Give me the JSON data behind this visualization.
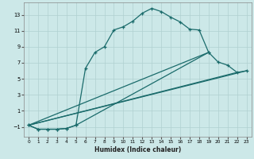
{
  "xlabel": "Humidex (Indice chaleur)",
  "background_color": "#cce8e8",
  "grid_color": "#b0d0d0",
  "line_color": "#1a6b6b",
  "xlim": [
    -0.5,
    23.5
  ],
  "ylim": [
    -2.2,
    14.5
  ],
  "xticks": [
    0,
    1,
    2,
    3,
    4,
    5,
    6,
    7,
    8,
    9,
    10,
    11,
    12,
    13,
    14,
    15,
    16,
    17,
    18,
    19,
    20,
    21,
    22,
    23
  ],
  "yticks": [
    -1,
    1,
    3,
    5,
    7,
    9,
    11,
    13
  ],
  "curve1_x": [
    0,
    1,
    2,
    3,
    4,
    5,
    6,
    7,
    8,
    9,
    10,
    11,
    12,
    13,
    14,
    15,
    16,
    17,
    18,
    19
  ],
  "curve1_y": [
    -0.8,
    -1.3,
    -1.3,
    -1.3,
    -1.2,
    -0.8,
    6.3,
    8.3,
    9.0,
    11.1,
    11.5,
    12.2,
    13.2,
    13.8,
    13.4,
    12.7,
    12.1,
    11.2,
    11.1,
    8.3
  ],
  "curve2_x": [
    0,
    1,
    2,
    3,
    4,
    5,
    19,
    20,
    21,
    22,
    23
  ],
  "curve2_y": [
    -0.8,
    -1.3,
    -1.3,
    -1.3,
    -1.2,
    -0.8,
    8.3,
    7.1,
    6.7,
    5.8,
    6.0
  ],
  "line1_x": [
    0,
    23
  ],
  "line1_y": [
    -0.8,
    6.0
  ],
  "line2_x": [
    0,
    22
  ],
  "line2_y": [
    -0.8,
    5.8
  ],
  "line3_x": [
    0,
    19
  ],
  "line3_y": [
    -0.8,
    8.3
  ]
}
